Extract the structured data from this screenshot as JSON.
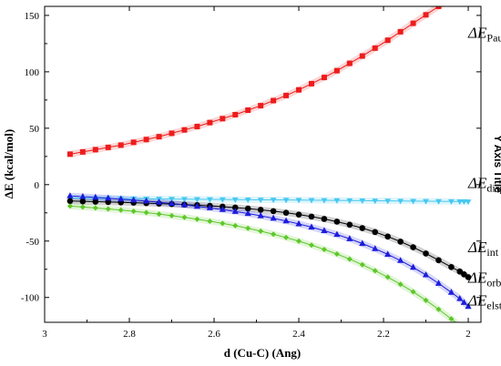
{
  "chart_data": {
    "type": "line",
    "xlabel": "d (Cu-C) (Ang)",
    "ylabel": "ΔE (kcal/mol)",
    "y2label": "Y Axis Title",
    "xlim": [
      3.0,
      1.97
    ],
    "ylim": [
      -122,
      158
    ],
    "x_reversed": true,
    "x_ticks": [
      3.0,
      2.8,
      2.6,
      2.4,
      2.2,
      2.0
    ],
    "x_tick_labels": [
      "3",
      "2.8",
      "2.6",
      "2.4",
      "2.2",
      "2"
    ],
    "y_ticks": [
      -100,
      -50,
      0,
      50,
      100,
      150
    ],
    "y_tick_labels": [
      "-100",
      "-50",
      "0",
      "50",
      "100",
      "150"
    ],
    "grid": false,
    "x": [
      2.94,
      2.91,
      2.88,
      2.85,
      2.82,
      2.79,
      2.76,
      2.73,
      2.7,
      2.67,
      2.64,
      2.61,
      2.58,
      2.55,
      2.52,
      2.49,
      2.46,
      2.43,
      2.4,
      2.37,
      2.34,
      2.31,
      2.28,
      2.25,
      2.22,
      2.19,
      2.16,
      2.13,
      2.1,
      2.07,
      2.04,
      2.02,
      2.01,
      2.0
    ],
    "series": [
      {
        "name": "ΔE Pauli",
        "label_main": "ΔE",
        "label_sub": "Pauli",
        "color": "#ee1c1c",
        "marker": "square",
        "label_x": 2.0,
        "label_y": 130,
        "values": [
          27,
          29,
          31,
          33,
          35,
          37.5,
          40,
          42.5,
          45.5,
          48.5,
          51.5,
          55,
          58.5,
          62,
          66,
          70,
          74.5,
          79,
          84,
          89.5,
          95,
          101,
          107.5,
          114,
          121,
          128,
          135.5,
          143,
          150.5,
          158,
          165.5,
          170,
          173,
          176
        ]
      },
      {
        "name": "ΔE disp",
        "label_main": "ΔE",
        "label_sub": "disp",
        "color": "#48c8f0",
        "marker": "triangle-down",
        "label_x": 2.0,
        "label_y": -3,
        "values": [
          -12,
          -12.1,
          -12.2,
          -12.3,
          -12.4,
          -12.5,
          -12.6,
          -12.7,
          -12.8,
          -12.9,
          -13,
          -13.1,
          -13.2,
          -13.3,
          -13.4,
          -13.5,
          -13.5,
          -13.6,
          -13.7,
          -13.8,
          -13.9,
          -14,
          -14.1,
          -14.2,
          -14.3,
          -14.4,
          -14.5,
          -14.6,
          -14.7,
          -14.8,
          -14.9,
          -15,
          -15,
          -15.1
        ]
      },
      {
        "name": "ΔE int",
        "label_main": "ΔE",
        "label_sub": "int",
        "color": "#000000",
        "marker": "circle",
        "label_x": 2.0,
        "label_y": -60,
        "values": [
          -14.5,
          -14.8,
          -15.1,
          -15.4,
          -15.7,
          -16,
          -16.4,
          -16.8,
          -17.2,
          -17.7,
          -18.2,
          -18.8,
          -19.5,
          -20.3,
          -21.2,
          -22.3,
          -23.5,
          -24.9,
          -26.5,
          -28.3,
          -30.4,
          -32.8,
          -35.5,
          -38.5,
          -42,
          -46,
          -50.5,
          -55.5,
          -61,
          -67,
          -73,
          -77,
          -79.5,
          -82
        ]
      },
      {
        "name": "ΔE orb",
        "label_main": "ΔE",
        "label_sub": "orb",
        "color": "#1c1cdc",
        "marker": "triangle-up",
        "label_x": 2.0,
        "label_y": -87,
        "values": [
          -10,
          -10.6,
          -11.3,
          -12,
          -12.8,
          -13.7,
          -14.6,
          -15.6,
          -16.7,
          -17.9,
          -19.2,
          -20.6,
          -22.1,
          -23.8,
          -25.6,
          -27.6,
          -29.8,
          -32.2,
          -34.8,
          -37.7,
          -40.8,
          -44.2,
          -48,
          -52.2,
          -56.8,
          -61.8,
          -67.3,
          -73.3,
          -80,
          -87.5,
          -95.5,
          -101,
          -104.5,
          -108
        ]
      },
      {
        "name": "ΔE elst",
        "label_main": "ΔE",
        "label_sub": "elst",
        "color": "#5cc828",
        "marker": "diamond",
        "label_x": 2.0,
        "label_y": -107,
        "values": [
          -19,
          -19.8,
          -20.6,
          -21.5,
          -22.5,
          -23.6,
          -24.8,
          -26.1,
          -27.5,
          -29,
          -30.6,
          -32.4,
          -34.3,
          -36.4,
          -38.7,
          -41.2,
          -43.9,
          -46.9,
          -50.1,
          -53.6,
          -57.4,
          -61.5,
          -66,
          -71,
          -76.3,
          -82,
          -88.3,
          -95,
          -102.5,
          -110.5,
          -119,
          -125,
          -128.5,
          -132
        ]
      }
    ]
  }
}
